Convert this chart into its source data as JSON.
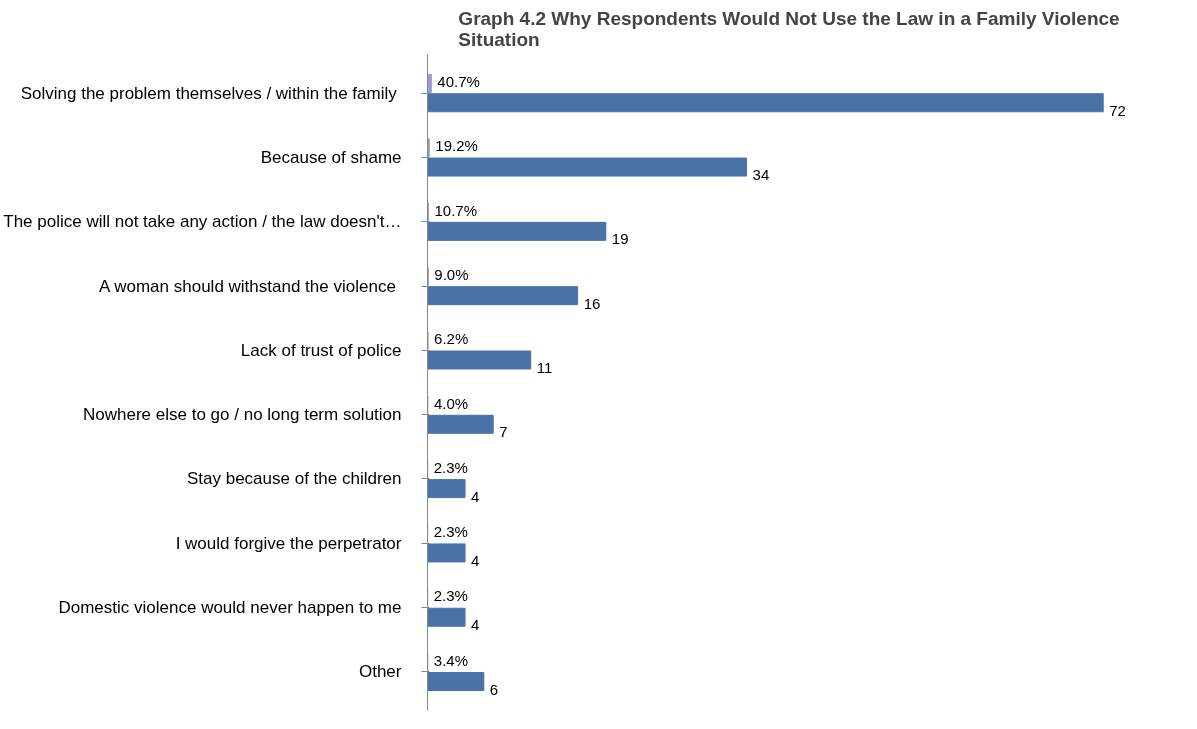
{
  "chart_data": {
    "type": "bar",
    "orientation": "horizontal",
    "title": "Graph 4.2 Why Respondents Would Not Use the Law in a Family Violence\nSituation",
    "categories": [
      "Solving the problem themselves / within  the family",
      "Because of shame",
      "The police will not take any action / the law doesn't…",
      "A woman should withstand  the violence",
      "Lack of trust of police",
      "Nowhere else to go / no long term solution",
      "Stay because of the children",
      "I would forgive the perpetrator",
      "Domestic violence would never happen to me",
      "Other"
    ],
    "series": [
      {
        "color": "#9a9ad0",
        "values": [
          0.407,
          0.192,
          0.107,
          0.09,
          0.062,
          0.04,
          0.023,
          0.023,
          0.023,
          0.034
        ],
        "value_labels": [
          "40.7%",
          "19.2%",
          "10.7%",
          "9.0%",
          "6.2%",
          "4.0%",
          "2.3%",
          "2.3%",
          "2.3%",
          "3.4%"
        ]
      },
      {
        "color": "#4a72a6",
        "values": [
          72,
          34,
          19,
          16,
          11,
          7,
          4,
          4,
          4,
          6
        ],
        "value_labels": [
          "72",
          "34",
          "19",
          "16",
          "11",
          "7",
          "4",
          "4",
          "4",
          "6"
        ]
      }
    ],
    "grid": false,
    "tick_labels": "y"
  }
}
